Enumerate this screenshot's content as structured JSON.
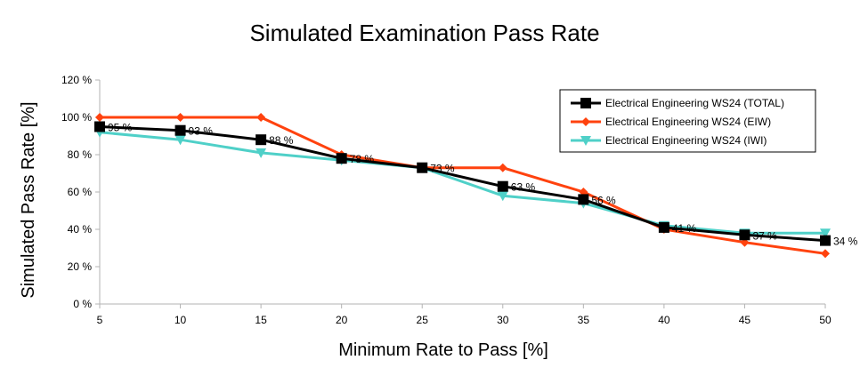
{
  "chart_data": {
    "type": "line",
    "title": "Simulated Examination Pass Rate",
    "xlabel": "Minimum Rate to Pass [%]",
    "ylabel": "Simulated Pass Rate [%]",
    "x": [
      5,
      10,
      15,
      20,
      25,
      30,
      35,
      40,
      45,
      50
    ],
    "xlim": [
      5,
      50
    ],
    "ylim": [
      0,
      120
    ],
    "y_ticks": [
      0,
      20,
      40,
      60,
      80,
      100,
      120
    ],
    "y_tick_labels": [
      "0 %",
      "20 %",
      "40 %",
      "60 %",
      "80 %",
      "100 %",
      "120 %"
    ],
    "x_tick_labels": [
      "5",
      "10",
      "15",
      "20",
      "25",
      "30",
      "35",
      "40",
      "45",
      "50"
    ],
    "grid": false,
    "legend_position": "top-right",
    "series": [
      {
        "name": "Electrical Engineering WS24 (TOTAL)",
        "color": "#000000",
        "marker": "square",
        "values": [
          95,
          93,
          88,
          78,
          73,
          63,
          56,
          41,
          37,
          34
        ],
        "data_labels": [
          "95 %",
          "93 %",
          "88 %",
          "78 %",
          "73 %",
          "63 %",
          "56 %",
          "41 %",
          "37 %",
          "34 %"
        ]
      },
      {
        "name": "Electrical Engineering WS24 (EIW)",
        "color": "#ff420e",
        "marker": "diamond",
        "values": [
          100,
          100,
          100,
          80,
          73,
          73,
          60,
          40,
          33,
          27
        ]
      },
      {
        "name": "Electrical Engineering WS24 (IWI)",
        "color": "#4fd0c8",
        "marker": "triangle-down",
        "values": [
          92,
          88,
          81,
          77,
          73,
          58,
          54,
          42,
          38,
          38
        ]
      }
    ]
  }
}
